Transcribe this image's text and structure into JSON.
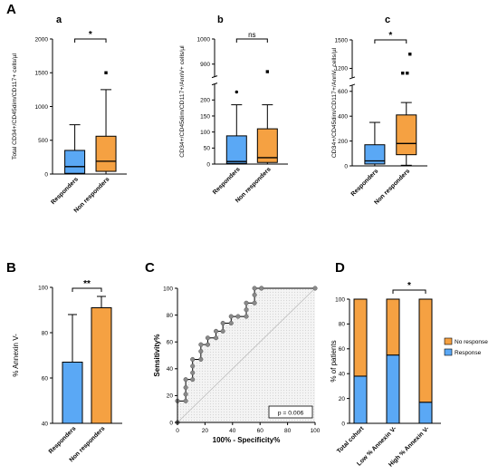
{
  "panels": {
    "A": "A",
    "B": "B",
    "C": "C",
    "D": "D",
    "a": "a",
    "b": "b",
    "c": "c"
  },
  "colors": {
    "responders": "#5aa8f5",
    "non_responders": "#f5a142",
    "roc_fill": "#d6d6d6",
    "roc_point": "#8a8a8a"
  },
  "chart_data": [
    {
      "id": "Aa",
      "type": "box",
      "ylabel": "Total CD34+/CD45dim/CD117+ cells/µl",
      "yticks": [
        0,
        500,
        1000,
        1500,
        2000
      ],
      "ylim": [
        0,
        2000
      ],
      "categories": [
        "Responders",
        "Non responders"
      ],
      "boxes": [
        {
          "q1": 10,
          "median": 110,
          "q3": 350,
          "whisker_low": 0,
          "whisker_high": 730,
          "outliers": []
        },
        {
          "q1": 40,
          "median": 190,
          "q3": 560,
          "whisker_low": 0,
          "whisker_high": 1250,
          "outliers": [
            1500
          ]
        }
      ],
      "significance": "*"
    },
    {
      "id": "Ab",
      "type": "box",
      "ylabel": "CD34+/CD45dim/CD117+/AnnV+ cells/µl",
      "yticks": [
        0,
        50,
        100,
        150,
        200,
        900,
        1000
      ],
      "ylim": [
        0,
        1000
      ],
      "axis_break": [
        250,
        850
      ],
      "categories": [
        "Responders",
        "Non responders"
      ],
      "boxes": [
        {
          "q1": 2,
          "median": 8,
          "q3": 88,
          "whisker_low": 0,
          "whisker_high": 185,
          "outliers": [
            225
          ]
        },
        {
          "q1": 5,
          "median": 20,
          "q3": 110,
          "whisker_low": 0,
          "whisker_high": 185,
          "outliers": [
            870
          ]
        }
      ],
      "significance": "ns"
    },
    {
      "id": "Ac",
      "type": "box",
      "ylabel": "CD34+/CD45dim/CD117+/AnnV- cells/µl",
      "yticks": [
        0,
        200,
        400,
        600,
        1200,
        1500
      ],
      "ylim": [
        0,
        1500
      ],
      "axis_break": [
        650,
        1100
      ],
      "categories": [
        "Responders",
        "Non responders"
      ],
      "boxes": [
        {
          "q1": 15,
          "median": 40,
          "q3": 170,
          "whisker_low": 0,
          "whisker_high": 350,
          "outliers": []
        },
        {
          "q1": 90,
          "median": 180,
          "q3": 410,
          "whisker_low": 5,
          "whisker_high": 510,
          "outliers": [
            1150,
            1150,
            1350
          ]
        }
      ],
      "significance": "*"
    },
    {
      "id": "B",
      "type": "bar",
      "ylabel": "% Annexin V-",
      "yticks": [
        40,
        60,
        80,
        100
      ],
      "ylim": [
        40,
        100
      ],
      "categories": [
        "Responders",
        "Non responders"
      ],
      "values": [
        67,
        91
      ],
      "errors": [
        21,
        5
      ],
      "significance": "**"
    },
    {
      "id": "C",
      "type": "line",
      "xlabel": "100% - Specificity%",
      "ylabel": "Sensitivity%",
      "xticks": [
        0,
        20,
        40,
        60,
        80,
        100
      ],
      "yticks": [
        0,
        20,
        40,
        60,
        80,
        100
      ],
      "xlim": [
        0,
        100
      ],
      "ylim": [
        0,
        100
      ],
      "x": [
        0,
        0,
        6,
        6,
        6,
        6,
        11,
        11,
        11,
        11,
        17,
        17,
        17,
        22,
        22,
        28,
        28,
        33,
        33,
        39,
        39,
        44,
        50,
        50,
        50,
        56,
        56,
        56,
        61,
        61,
        100
      ],
      "y": [
        0,
        16,
        16,
        21,
        26,
        32,
        32,
        37,
        42,
        47,
        47,
        53,
        58,
        58,
        63,
        63,
        68,
        68,
        74,
        74,
        79,
        79,
        79,
        84,
        89,
        89,
        95,
        100,
        100,
        100,
        100
      ],
      "annotation": "p = 0.006"
    },
    {
      "id": "D",
      "type": "bar",
      "stacked": true,
      "ylabel": "% of patients",
      "yticks": [
        0,
        20,
        40,
        60,
        80,
        100
      ],
      "ylim": [
        0,
        100
      ],
      "categories": [
        "Total cohort",
        "Low % Annexin V-",
        "High % Annexin V-"
      ],
      "series": [
        {
          "name": "Response",
          "values": [
            38,
            55,
            17
          ]
        },
        {
          "name": "No response",
          "values": [
            62,
            45,
            83
          ]
        }
      ],
      "legend": "right",
      "significance": "*"
    }
  ]
}
